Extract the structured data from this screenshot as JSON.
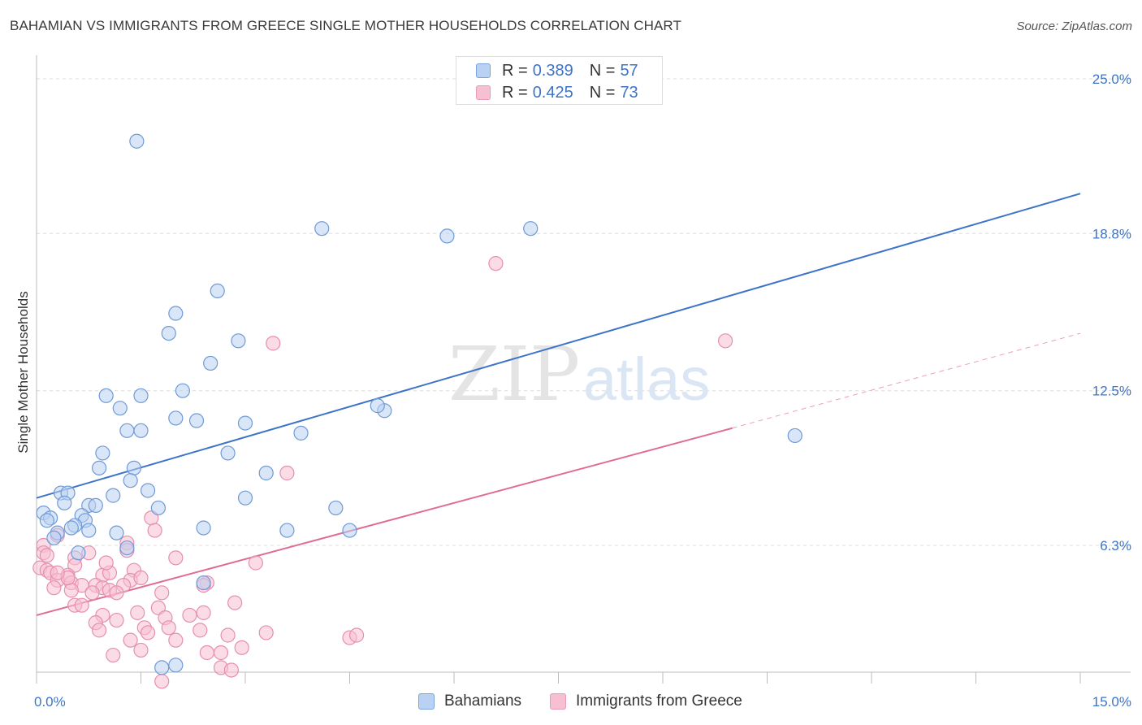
{
  "title": "BAHAMIAN VS IMMIGRANTS FROM GREECE SINGLE MOTHER HOUSEHOLDS CORRELATION CHART",
  "source": "Source: ZipAtlas.com",
  "watermark": {
    "zip": "ZIP",
    "atlas": "atlas"
  },
  "colors": {
    "blue": "#3d74c8",
    "blue_fill": "#b9d1f2",
    "pink": "#e06b96",
    "pink_fill": "#f7bfd2",
    "grid": "#dcdcdc"
  },
  "legend_top": [
    {
      "r_label": "R =",
      "r_value": "0.389",
      "n_label": "N =",
      "n_value": "57"
    },
    {
      "r_label": "R =",
      "r_value": "0.425",
      "n_label": "N =",
      "n_value": "73"
    }
  ],
  "chart_data": {
    "type": "scatter",
    "title": "BAHAMIAN VS IMMIGRANTS FROM GREECE SINGLE MOTHER HOUSEHOLDS CORRELATION CHART",
    "xlabel": "",
    "ylabel": "Single Mother Households",
    "xlim": [
      0,
      15
    ],
    "ylim": [
      0,
      26
    ],
    "x_tick_labels": [
      {
        "value": 0,
        "label": "0.0%"
      },
      {
        "value": 15,
        "label": "15.0%"
      }
    ],
    "y_tick_labels": [
      {
        "value": 6.3,
        "label": "6.3%"
      },
      {
        "value": 12.5,
        "label": "12.5%"
      },
      {
        "value": 18.8,
        "label": "18.8%"
      },
      {
        "value": 25.0,
        "label": "25.0%"
      }
    ],
    "legend_position": "bottom",
    "series": [
      {
        "name": "Bahamians",
        "color": "#3d74c8",
        "trend": {
          "x": [
            0,
            15
          ],
          "y": [
            8.2,
            20.4
          ]
        },
        "points": [
          [
            1.44,
            22.5
          ],
          [
            4.1,
            19.0
          ],
          [
            5.9,
            18.7
          ],
          [
            7.1,
            19.0
          ],
          [
            2.6,
            16.5
          ],
          [
            2.0,
            15.6
          ],
          [
            1.9,
            14.8
          ],
          [
            2.9,
            14.5
          ],
          [
            2.5,
            13.6
          ],
          [
            1.0,
            12.3
          ],
          [
            1.5,
            12.3
          ],
          [
            2.1,
            12.5
          ],
          [
            1.2,
            11.8
          ],
          [
            5.0,
            11.7
          ],
          [
            4.9,
            11.9
          ],
          [
            2.0,
            11.4
          ],
          [
            2.3,
            11.3
          ],
          [
            3.0,
            11.2
          ],
          [
            1.3,
            10.9
          ],
          [
            1.5,
            10.9
          ],
          [
            3.8,
            10.8
          ],
          [
            10.9,
            10.7
          ],
          [
            0.95,
            10.0
          ],
          [
            2.75,
            10.0
          ],
          [
            0.9,
            9.4
          ],
          [
            1.4,
            9.4
          ],
          [
            3.3,
            9.2
          ],
          [
            1.35,
            8.9
          ],
          [
            0.35,
            8.4
          ],
          [
            0.45,
            8.4
          ],
          [
            1.6,
            8.5
          ],
          [
            1.1,
            8.3
          ],
          [
            3.0,
            8.2
          ],
          [
            0.4,
            8.0
          ],
          [
            0.75,
            7.9
          ],
          [
            0.85,
            7.9
          ],
          [
            1.75,
            7.8
          ],
          [
            4.3,
            7.8
          ],
          [
            0.1,
            7.6
          ],
          [
            0.65,
            7.5
          ],
          [
            0.2,
            7.4
          ],
          [
            0.15,
            7.3
          ],
          [
            0.7,
            7.3
          ],
          [
            0.55,
            7.1
          ],
          [
            0.5,
            7.0
          ],
          [
            2.4,
            7.0
          ],
          [
            3.6,
            6.9
          ],
          [
            4.5,
            6.9
          ],
          [
            0.75,
            6.9
          ],
          [
            1.15,
            6.8
          ],
          [
            0.3,
            6.8
          ],
          [
            0.25,
            6.6
          ],
          [
            1.3,
            6.2
          ],
          [
            0.6,
            6.0
          ],
          [
            2.4,
            4.8
          ],
          [
            1.8,
            1.4
          ],
          [
            2.0,
            1.5
          ]
        ]
      },
      {
        "name": "Immigrants from Greece",
        "color": "#e06b96",
        "trend": {
          "x": [
            0,
            10
          ],
          "y": [
            3.5,
            11.0
          ]
        },
        "trend_dashed": {
          "x": [
            10,
            15
          ],
          "y": [
            11.0,
            14.8
          ]
        },
        "points": [
          [
            6.6,
            17.6
          ],
          [
            3.4,
            14.4
          ],
          [
            9.9,
            14.5
          ],
          [
            3.6,
            9.2
          ],
          [
            1.65,
            7.4
          ],
          [
            1.7,
            6.9
          ],
          [
            0.3,
            6.7
          ],
          [
            0.1,
            6.3
          ],
          [
            1.3,
            6.4
          ],
          [
            0.75,
            6.0
          ],
          [
            1.3,
            6.1
          ],
          [
            0.1,
            6.0
          ],
          [
            0.55,
            5.8
          ],
          [
            0.15,
            5.9
          ],
          [
            2.0,
            5.8
          ],
          [
            3.15,
            5.6
          ],
          [
            0.05,
            5.4
          ],
          [
            0.15,
            5.3
          ],
          [
            0.55,
            5.5
          ],
          [
            0.2,
            5.2
          ],
          [
            0.45,
            5.1
          ],
          [
            0.95,
            5.1
          ],
          [
            1.4,
            5.3
          ],
          [
            1.05,
            5.2
          ],
          [
            0.3,
            4.9
          ],
          [
            0.5,
            4.8
          ],
          [
            1.35,
            4.9
          ],
          [
            1.5,
            5.0
          ],
          [
            2.45,
            4.8
          ],
          [
            2.4,
            4.7
          ],
          [
            0.65,
            4.7
          ],
          [
            0.85,
            4.7
          ],
          [
            0.95,
            4.6
          ],
          [
            1.25,
            4.7
          ],
          [
            0.25,
            4.6
          ],
          [
            0.5,
            4.5
          ],
          [
            0.8,
            4.4
          ],
          [
            1.05,
            4.5
          ],
          [
            1.15,
            4.4
          ],
          [
            1.8,
            4.4
          ],
          [
            0.55,
            3.9
          ],
          [
            1.75,
            3.8
          ],
          [
            2.85,
            4.0
          ],
          [
            0.65,
            3.9
          ],
          [
            0.95,
            3.5
          ],
          [
            1.45,
            3.6
          ],
          [
            1.85,
            3.4
          ],
          [
            2.2,
            3.5
          ],
          [
            2.4,
            3.6
          ],
          [
            0.85,
            3.2
          ],
          [
            1.15,
            3.3
          ],
          [
            1.9,
            3.0
          ],
          [
            1.55,
            3.0
          ],
          [
            1.6,
            2.8
          ],
          [
            0.9,
            2.9
          ],
          [
            2.35,
            2.9
          ],
          [
            3.3,
            2.8
          ],
          [
            2.75,
            2.7
          ],
          [
            2.0,
            2.5
          ],
          [
            1.35,
            2.5
          ],
          [
            4.5,
            2.6
          ],
          [
            4.6,
            2.7
          ],
          [
            1.5,
            2.1
          ],
          [
            2.65,
            2.0
          ],
          [
            2.95,
            2.2
          ],
          [
            1.1,
            1.9
          ],
          [
            2.65,
            1.4
          ],
          [
            2.8,
            1.3
          ],
          [
            1.8,
            0.85
          ],
          [
            2.45,
            2.0
          ],
          [
            0.45,
            5.0
          ],
          [
            1.0,
            5.6
          ],
          [
            0.3,
            5.2
          ]
        ]
      }
    ]
  }
}
